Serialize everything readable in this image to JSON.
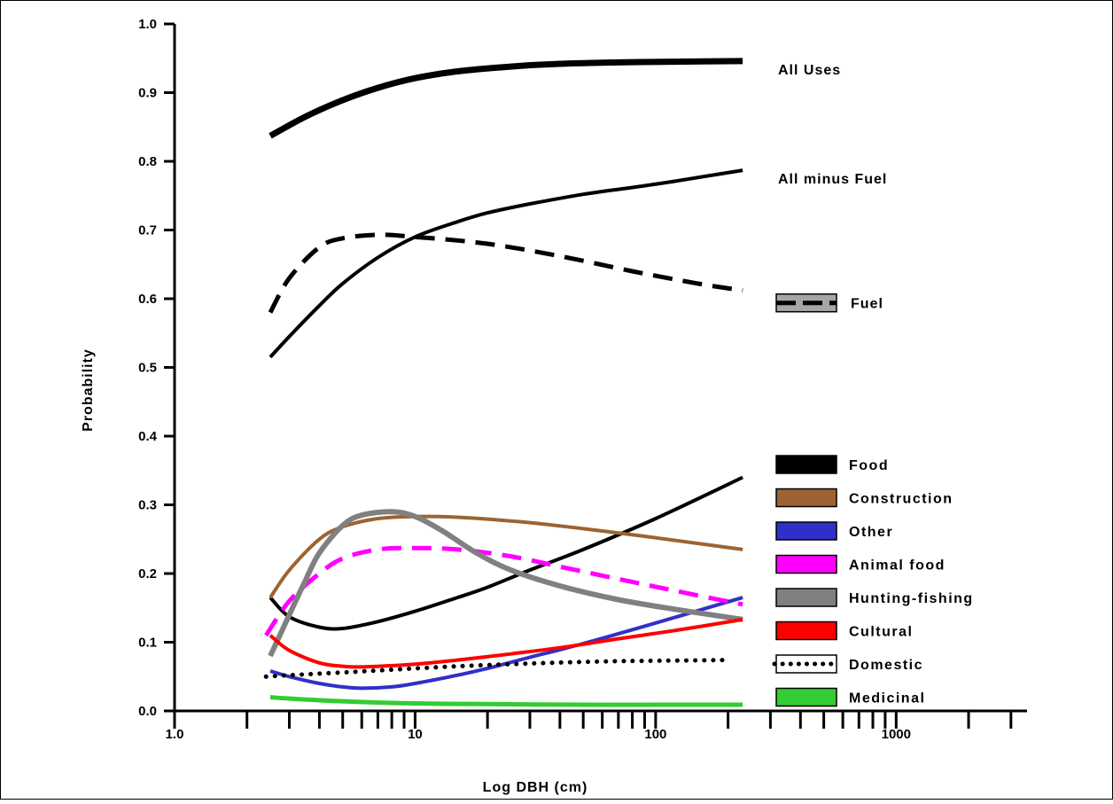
{
  "chart_data": {
    "type": "line",
    "title": "",
    "xlabel": "Log DBH (cm)",
    "ylabel": "Probability",
    "x_scale": "log",
    "xlim": [
      1,
      3500
    ],
    "ylim": [
      0,
      1.0
    ],
    "x_tick_labels": [
      "1.0",
      "10",
      "100",
      "1000"
    ],
    "y_tick_labels": [
      "0.0",
      "0.1",
      "0.2",
      "0.3",
      "0.4",
      "0.5",
      "0.6",
      "0.7",
      "0.8",
      "0.9",
      "1.0"
    ],
    "grid": false,
    "legend_position": "lower-right",
    "series": [
      {
        "name": "All Uses",
        "color": "#000000",
        "dash": "solid",
        "width": 7,
        "label_position": "end",
        "x": [
          2.5,
          3.5,
          5,
          7,
          10,
          15,
          25,
          40,
          70,
          120,
          230
        ],
        "y": [
          0.837,
          0.865,
          0.889,
          0.907,
          0.921,
          0.931,
          0.938,
          0.942,
          0.944,
          0.945,
          0.946
        ]
      },
      {
        "name": "All minus Fuel",
        "color": "#000000",
        "dash": "solid",
        "width": 4,
        "label_position": "end",
        "x": [
          2.5,
          3,
          4,
          5,
          7,
          10,
          15,
          20,
          30,
          50,
          80,
          120,
          230
        ],
        "y": [
          0.515,
          0.545,
          0.59,
          0.622,
          0.66,
          0.69,
          0.712,
          0.725,
          0.738,
          0.752,
          0.762,
          0.771,
          0.787
        ]
      },
      {
        "name": "Fuel",
        "color": "#000000",
        "dash": "dashed",
        "width": 5,
        "label_position": "legend-box",
        "x": [
          2.5,
          3,
          4,
          5,
          7,
          10,
          20,
          40,
          80,
          150,
          230
        ],
        "y": [
          0.58,
          0.63,
          0.675,
          0.688,
          0.693,
          0.69,
          0.68,
          0.662,
          0.64,
          0.622,
          0.612
        ]
      },
      {
        "name": "Food",
        "color": "#000000",
        "dash": "solid",
        "width": 4,
        "label_position": "legend",
        "x": [
          2.5,
          3,
          4,
          5,
          7,
          10,
          15,
          20,
          30,
          50,
          100,
          230
        ],
        "y": [
          0.165,
          0.137,
          0.122,
          0.12,
          0.13,
          0.145,
          0.165,
          0.18,
          0.205,
          0.235,
          0.28,
          0.34
        ]
      },
      {
        "name": "Construction",
        "color": "#9c6433",
        "dash": "solid",
        "width": 4,
        "label_position": "legend",
        "x": [
          2.5,
          3,
          4,
          5,
          7,
          10,
          15,
          30,
          60,
          100,
          230
        ],
        "y": [
          0.165,
          0.205,
          0.25,
          0.268,
          0.28,
          0.283,
          0.282,
          0.274,
          0.262,
          0.252,
          0.235
        ]
      },
      {
        "name": "Other",
        "color": "#3030c8",
        "dash": "solid",
        "width": 4,
        "label_position": "legend",
        "x": [
          2.5,
          3,
          4,
          5,
          6,
          8,
          10,
          15,
          20,
          30,
          50,
          100,
          230
        ],
        "y": [
          0.058,
          0.05,
          0.04,
          0.035,
          0.033,
          0.035,
          0.04,
          0.052,
          0.062,
          0.078,
          0.098,
          0.128,
          0.165
        ]
      },
      {
        "name": "Animal food",
        "color": "#ff00ff",
        "dash": "dashed",
        "width": 5,
        "label_position": "legend",
        "x": [
          2.4,
          3,
          4,
          5,
          7,
          10,
          15,
          25,
          40,
          70,
          120,
          230
        ],
        "y": [
          0.11,
          0.16,
          0.2,
          0.222,
          0.235,
          0.237,
          0.235,
          0.225,
          0.21,
          0.192,
          0.175,
          0.155
        ]
      },
      {
        "name": "Hunting-fishing",
        "color": "#808080",
        "dash": "solid",
        "width": 6,
        "label_position": "legend",
        "x": [
          2.5,
          3,
          3.5,
          4,
          5,
          6,
          8,
          10,
          13,
          18,
          25,
          40,
          70,
          120,
          230
        ],
        "y": [
          0.08,
          0.14,
          0.19,
          0.23,
          0.27,
          0.285,
          0.29,
          0.283,
          0.262,
          0.23,
          0.205,
          0.182,
          0.162,
          0.148,
          0.133
        ]
      },
      {
        "name": "Cultural",
        "color": "#ff0000",
        "dash": "solid",
        "width": 4,
        "label_position": "legend",
        "x": [
          2.5,
          3,
          4,
          5,
          6,
          8,
          10,
          15,
          25,
          40,
          70,
          120,
          230
        ],
        "y": [
          0.11,
          0.088,
          0.07,
          0.065,
          0.064,
          0.066,
          0.068,
          0.074,
          0.083,
          0.092,
          0.105,
          0.117,
          0.133
        ]
      },
      {
        "name": "Domestic",
        "color": "#000000",
        "dash": "dotted",
        "width": 5,
        "label_position": "legend",
        "x": [
          2.4,
          3,
          5,
          8,
          15,
          30,
          60,
          100,
          200
        ],
        "y": [
          0.05,
          0.052,
          0.056,
          0.06,
          0.065,
          0.069,
          0.072,
          0.073,
          0.074
        ]
      },
      {
        "name": "Medicinal",
        "color": "#33cc33",
        "dash": "solid",
        "width": 5,
        "label_position": "legend",
        "x": [
          2.5,
          3,
          5,
          10,
          20,
          50,
          100,
          230
        ],
        "y": [
          0.02,
          0.018,
          0.014,
          0.011,
          0.01,
          0.009,
          0.009,
          0.009
        ]
      }
    ]
  }
}
